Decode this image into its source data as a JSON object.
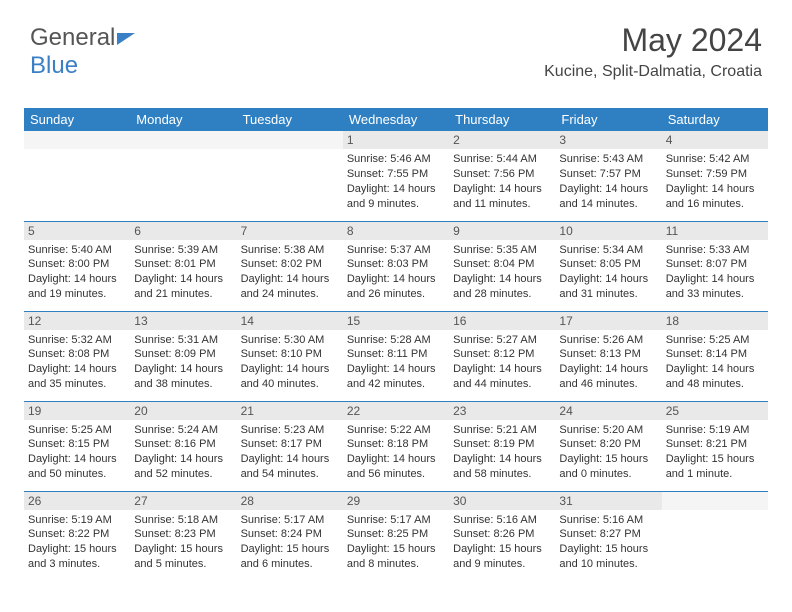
{
  "logo": {
    "text1": "General",
    "text2": "Blue"
  },
  "title": "May 2024",
  "location": "Kucine, Split-Dalmatia, Croatia",
  "colors": {
    "header_bg": "#2f80c3",
    "header_text": "#ffffff",
    "daynum_bg": "#e9e9e9",
    "text": "#333333",
    "rule": "#2f80c3"
  },
  "weekdays": [
    "Sunday",
    "Monday",
    "Tuesday",
    "Wednesday",
    "Thursday",
    "Friday",
    "Saturday"
  ],
  "weeks": [
    [
      null,
      null,
      null,
      {
        "n": "1",
        "sr": "5:46 AM",
        "ss": "7:55 PM",
        "dl": "14 hours and 9 minutes."
      },
      {
        "n": "2",
        "sr": "5:44 AM",
        "ss": "7:56 PM",
        "dl": "14 hours and 11 minutes."
      },
      {
        "n": "3",
        "sr": "5:43 AM",
        "ss": "7:57 PM",
        "dl": "14 hours and 14 minutes."
      },
      {
        "n": "4",
        "sr": "5:42 AM",
        "ss": "7:59 PM",
        "dl": "14 hours and 16 minutes."
      }
    ],
    [
      {
        "n": "5",
        "sr": "5:40 AM",
        "ss": "8:00 PM",
        "dl": "14 hours and 19 minutes."
      },
      {
        "n": "6",
        "sr": "5:39 AM",
        "ss": "8:01 PM",
        "dl": "14 hours and 21 minutes."
      },
      {
        "n": "7",
        "sr": "5:38 AM",
        "ss": "8:02 PM",
        "dl": "14 hours and 24 minutes."
      },
      {
        "n": "8",
        "sr": "5:37 AM",
        "ss": "8:03 PM",
        "dl": "14 hours and 26 minutes."
      },
      {
        "n": "9",
        "sr": "5:35 AM",
        "ss": "8:04 PM",
        "dl": "14 hours and 28 minutes."
      },
      {
        "n": "10",
        "sr": "5:34 AM",
        "ss": "8:05 PM",
        "dl": "14 hours and 31 minutes."
      },
      {
        "n": "11",
        "sr": "5:33 AM",
        "ss": "8:07 PM",
        "dl": "14 hours and 33 minutes."
      }
    ],
    [
      {
        "n": "12",
        "sr": "5:32 AM",
        "ss": "8:08 PM",
        "dl": "14 hours and 35 minutes."
      },
      {
        "n": "13",
        "sr": "5:31 AM",
        "ss": "8:09 PM",
        "dl": "14 hours and 38 minutes."
      },
      {
        "n": "14",
        "sr": "5:30 AM",
        "ss": "8:10 PM",
        "dl": "14 hours and 40 minutes."
      },
      {
        "n": "15",
        "sr": "5:28 AM",
        "ss": "8:11 PM",
        "dl": "14 hours and 42 minutes."
      },
      {
        "n": "16",
        "sr": "5:27 AM",
        "ss": "8:12 PM",
        "dl": "14 hours and 44 minutes."
      },
      {
        "n": "17",
        "sr": "5:26 AM",
        "ss": "8:13 PM",
        "dl": "14 hours and 46 minutes."
      },
      {
        "n": "18",
        "sr": "5:25 AM",
        "ss": "8:14 PM",
        "dl": "14 hours and 48 minutes."
      }
    ],
    [
      {
        "n": "19",
        "sr": "5:25 AM",
        "ss": "8:15 PM",
        "dl": "14 hours and 50 minutes."
      },
      {
        "n": "20",
        "sr": "5:24 AM",
        "ss": "8:16 PM",
        "dl": "14 hours and 52 minutes."
      },
      {
        "n": "21",
        "sr": "5:23 AM",
        "ss": "8:17 PM",
        "dl": "14 hours and 54 minutes."
      },
      {
        "n": "22",
        "sr": "5:22 AM",
        "ss": "8:18 PM",
        "dl": "14 hours and 56 minutes."
      },
      {
        "n": "23",
        "sr": "5:21 AM",
        "ss": "8:19 PM",
        "dl": "14 hours and 58 minutes."
      },
      {
        "n": "24",
        "sr": "5:20 AM",
        "ss": "8:20 PM",
        "dl": "15 hours and 0 minutes."
      },
      {
        "n": "25",
        "sr": "5:19 AM",
        "ss": "8:21 PM",
        "dl": "15 hours and 1 minute."
      }
    ],
    [
      {
        "n": "26",
        "sr": "5:19 AM",
        "ss": "8:22 PM",
        "dl": "15 hours and 3 minutes."
      },
      {
        "n": "27",
        "sr": "5:18 AM",
        "ss": "8:23 PM",
        "dl": "15 hours and 5 minutes."
      },
      {
        "n": "28",
        "sr": "5:17 AM",
        "ss": "8:24 PM",
        "dl": "15 hours and 6 minutes."
      },
      {
        "n": "29",
        "sr": "5:17 AM",
        "ss": "8:25 PM",
        "dl": "15 hours and 8 minutes."
      },
      {
        "n": "30",
        "sr": "5:16 AM",
        "ss": "8:26 PM",
        "dl": "15 hours and 9 minutes."
      },
      {
        "n": "31",
        "sr": "5:16 AM",
        "ss": "8:27 PM",
        "dl": "15 hours and 10 minutes."
      },
      null
    ]
  ],
  "labels": {
    "sunrise": "Sunrise: ",
    "sunset": "Sunset: ",
    "daylight": "Daylight: "
  }
}
